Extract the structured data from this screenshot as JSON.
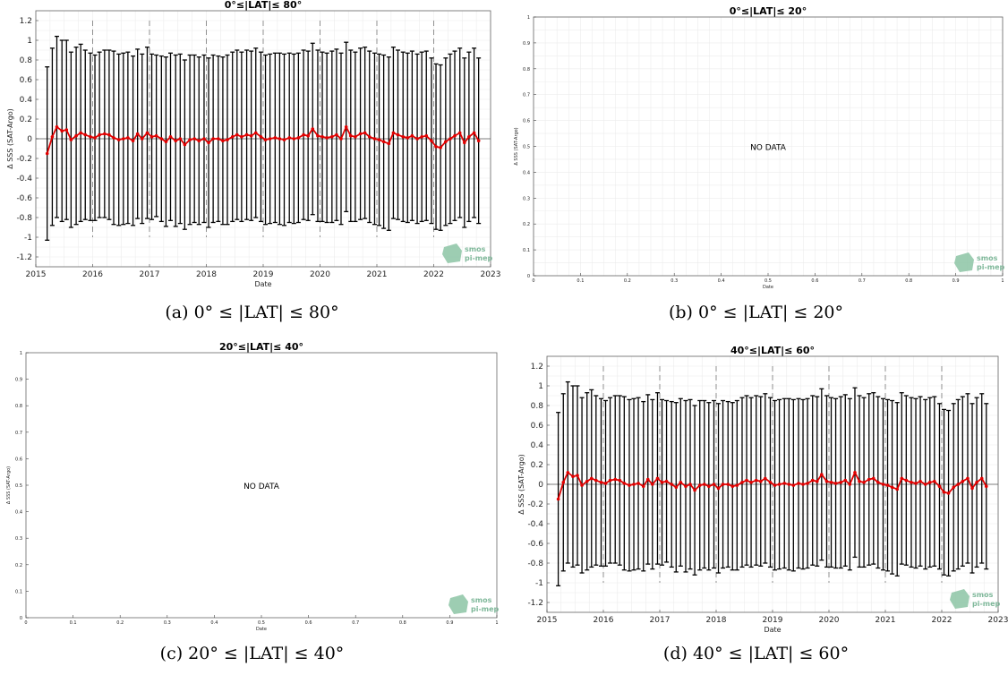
{
  "panels": [
    {
      "id": "a",
      "caption": "(a) 0° ≤ |LAT| ≤ 80°",
      "chart_data": {
        "type": "line",
        "title": "0°≤|LAT|≤ 80°",
        "xlabel": "Date",
        "ylabel": "Δ SSS (SAT-Argo)",
        "xlim": [
          2015,
          2023
        ],
        "ylim": [
          -1.3,
          1.3
        ],
        "xticks": [
          "2015",
          "2016",
          "2017",
          "2018",
          "2019",
          "2020",
          "2021",
          "2022",
          "2023"
        ],
        "yticks": [
          "1.2",
          "1",
          "0.8",
          "0.6",
          "0.4",
          "0.2",
          "0",
          "-0.2",
          "-0.4",
          "-0.6",
          "-0.8",
          "-1",
          "-1.2"
        ],
        "grid": true,
        "series": [
          {
            "color": "#e00000",
            "x": [
              2015.2,
              2015.29,
              2015.37,
              2015.46,
              2015.54,
              2015.62,
              2015.71,
              2015.79,
              2015.87,
              2015.96,
              2016.04,
              2016.12,
              2016.21,
              2016.29,
              2016.37,
              2016.46,
              2016.54,
              2016.62,
              2016.71,
              2016.79,
              2016.87,
              2016.96,
              2017.04,
              2017.12,
              2017.21,
              2017.29,
              2017.37,
              2017.46,
              2017.54,
              2017.62,
              2017.71,
              2017.79,
              2017.87,
              2017.96,
              2018.04,
              2018.12,
              2018.21,
              2018.29,
              2018.37,
              2018.46,
              2018.54,
              2018.62,
              2018.71,
              2018.79,
              2018.87,
              2018.96,
              2019.04,
              2019.12,
              2019.21,
              2019.29,
              2019.37,
              2019.46,
              2019.54,
              2019.62,
              2019.71,
              2019.79,
              2019.87,
              2019.96,
              2020.04,
              2020.12,
              2020.21,
              2020.29,
              2020.37,
              2020.46,
              2020.54,
              2020.62,
              2020.71,
              2020.79,
              2020.87,
              2020.96,
              2021.04,
              2021.12,
              2021.21,
              2021.29,
              2021.37,
              2021.46,
              2021.54,
              2021.62,
              2021.71,
              2021.79,
              2021.87,
              2021.96,
              2022.04,
              2022.12,
              2022.21,
              2022.29,
              2022.37,
              2022.46,
              2022.54,
              2022.62,
              2022.71,
              2022.79
            ],
            "y": [
              -0.15,
              0.02,
              0.12,
              0.08,
              0.09,
              -0.01,
              0.03,
              0.06,
              0.04,
              0.02,
              0.01,
              0.04,
              0.05,
              0.04,
              0.01,
              -0.01,
              0.0,
              0.01,
              -0.02,
              0.05,
              0.0,
              0.06,
              0.02,
              0.03,
              0.0,
              -0.03,
              0.02,
              -0.02,
              0.0,
              -0.06,
              -0.01,
              0.0,
              -0.02,
              0.0,
              -0.04,
              0.0,
              0.0,
              -0.02,
              -0.01,
              0.02,
              0.04,
              0.02,
              0.04,
              0.03,
              0.06,
              0.02,
              -0.01,
              0.0,
              0.01,
              0.0,
              -0.01,
              0.01,
              0.0,
              0.01,
              0.04,
              0.03,
              0.1,
              0.03,
              0.02,
              0.01,
              0.02,
              0.04,
              0.0,
              0.12,
              0.03,
              0.02,
              0.05,
              0.06,
              0.02,
              0.0,
              -0.01,
              -0.03,
              -0.05,
              0.06,
              0.04,
              0.02,
              0.01,
              0.03,
              0.0,
              0.02,
              0.03,
              -0.02,
              -0.08,
              -0.09,
              -0.03,
              0.0,
              0.03,
              0.06,
              -0.04,
              0.02,
              0.06,
              -0.02
            ],
            "yerr": [
              0.88,
              0.9,
              0.92,
              0.92,
              0.91,
              0.89,
              0.9,
              0.9,
              0.86,
              0.85,
              0.84,
              0.84,
              0.85,
              0.86,
              0.88,
              0.87,
              0.87,
              0.87,
              0.86,
              0.86,
              0.86,
              0.87,
              0.84,
              0.82,
              0.84,
              0.86,
              0.85,
              0.87,
              0.86,
              0.86,
              0.86,
              0.85,
              0.85,
              0.85,
              0.86,
              0.85,
              0.84,
              0.85,
              0.86,
              0.86,
              0.86,
              0.86,
              0.86,
              0.86,
              0.86,
              0.86,
              0.86,
              0.86,
              0.86,
              0.87,
              0.87,
              0.86,
              0.86,
              0.86,
              0.86,
              0.86,
              0.87,
              0.87,
              0.86,
              0.86,
              0.87,
              0.87,
              0.87,
              0.86,
              0.87,
              0.86,
              0.87,
              0.87,
              0.87,
              0.87,
              0.87,
              0.88,
              0.88,
              0.87,
              0.86,
              0.86,
              0.86,
              0.86,
              0.86,
              0.86,
              0.86,
              0.84,
              0.84,
              0.84,
              0.85,
              0.86,
              0.86,
              0.86,
              0.86,
              0.86,
              0.86,
              0.84
            ],
            "errorbar_color": "#000000"
          }
        ],
        "year_lines": [
          2016,
          2017,
          2018,
          2019,
          2020,
          2021,
          2022
        ]
      },
      "logo": {
        "line1": "smos",
        "line2": "pi-mep"
      }
    },
    {
      "id": "b",
      "caption": "(b) 0° ≤ |LAT| ≤ 20°",
      "chart_data": {
        "type": "line",
        "title": "0°≤|LAT|≤ 20°",
        "xlabel": "Date",
        "ylabel": "Δ SSS (SAT-Argo)",
        "xlim": [
          0,
          1
        ],
        "ylim": [
          0,
          1
        ],
        "xticks": [
          "0",
          "0.1",
          "0.2",
          "0.3",
          "0.4",
          "0.5",
          "0.6",
          "0.7",
          "0.8",
          "0.9",
          "1"
        ],
        "yticks": [
          "1",
          "0.9",
          "0.8",
          "0.7",
          "0.6",
          "0.5",
          "0.4",
          "0.3",
          "0.2",
          "0.1",
          "0"
        ],
        "grid": true,
        "series": [],
        "annotation": "NO DATA"
      },
      "logo": {
        "line1": "smos",
        "line2": "pi-mep"
      }
    },
    {
      "id": "c",
      "caption": "(c) 20° ≤ |LAT| ≤ 40°",
      "chart_data": {
        "type": "line",
        "title": "20°≤|LAT|≤ 40°",
        "xlabel": "Date",
        "ylabel": "Δ SSS (SAT-Argo)",
        "xlim": [
          0,
          1
        ],
        "ylim": [
          0,
          1
        ],
        "xticks": [
          "0",
          "0.1",
          "0.2",
          "0.3",
          "0.4",
          "0.5",
          "0.6",
          "0.7",
          "0.8",
          "0.9",
          "1"
        ],
        "yticks": [
          "1",
          "0.9",
          "0.8",
          "0.7",
          "0.6",
          "0.5",
          "0.4",
          "0.3",
          "0.2",
          "0.1",
          "0"
        ],
        "grid": false,
        "series": [],
        "annotation": "NO DATA"
      },
      "logo": {
        "line1": "smos",
        "line2": "pi-mep"
      }
    },
    {
      "id": "d",
      "caption": "(d) 40° ≤ |LAT| ≤ 60°",
      "chart_data": {
        "type": "line",
        "title": "40°≤|LAT|≤ 60°",
        "xlabel": "Date",
        "ylabel": "Δ SSS (SAT-Argo)",
        "xlim": [
          2015,
          2023
        ],
        "ylim": [
          -1.3,
          1.3
        ],
        "xticks": [
          "2015",
          "2016",
          "2017",
          "2018",
          "2019",
          "2020",
          "2021",
          "2022",
          "2023"
        ],
        "yticks": [
          "1.2",
          "1",
          "0.8",
          "0.6",
          "0.4",
          "0.2",
          "0",
          "-0.2",
          "-0.4",
          "-0.6",
          "-0.8",
          "-1",
          "-1.2"
        ],
        "grid": true,
        "series": [
          {
            "color": "#e00000",
            "x": [
              2015.2,
              2015.29,
              2015.37,
              2015.46,
              2015.54,
              2015.62,
              2015.71,
              2015.79,
              2015.87,
              2015.96,
              2016.04,
              2016.12,
              2016.21,
              2016.29,
              2016.37,
              2016.46,
              2016.54,
              2016.62,
              2016.71,
              2016.79,
              2016.87,
              2016.96,
              2017.04,
              2017.12,
              2017.21,
              2017.29,
              2017.37,
              2017.46,
              2017.54,
              2017.62,
              2017.71,
              2017.79,
              2017.87,
              2017.96,
              2018.04,
              2018.12,
              2018.21,
              2018.29,
              2018.37,
              2018.46,
              2018.54,
              2018.62,
              2018.71,
              2018.79,
              2018.87,
              2018.96,
              2019.04,
              2019.12,
              2019.21,
              2019.29,
              2019.37,
              2019.46,
              2019.54,
              2019.62,
              2019.71,
              2019.79,
              2019.87,
              2019.96,
              2020.04,
              2020.12,
              2020.21,
              2020.29,
              2020.37,
              2020.46,
              2020.54,
              2020.62,
              2020.71,
              2020.79,
              2020.87,
              2020.96,
              2021.04,
              2021.12,
              2021.21,
              2021.29,
              2021.37,
              2021.46,
              2021.54,
              2021.62,
              2021.71,
              2021.79,
              2021.87,
              2021.96,
              2022.04,
              2022.12,
              2022.21,
              2022.29,
              2022.37,
              2022.46,
              2022.54,
              2022.62,
              2022.71,
              2022.79
            ],
            "y": [
              -0.15,
              0.02,
              0.12,
              0.08,
              0.09,
              -0.01,
              0.03,
              0.06,
              0.04,
              0.02,
              0.01,
              0.04,
              0.05,
              0.04,
              0.01,
              -0.01,
              0.0,
              0.01,
              -0.02,
              0.05,
              0.0,
              0.06,
              0.02,
              0.03,
              0.0,
              -0.03,
              0.02,
              -0.02,
              0.0,
              -0.06,
              -0.01,
              0.0,
              -0.02,
              0.0,
              -0.04,
              0.0,
              0.0,
              -0.02,
              -0.01,
              0.02,
              0.04,
              0.02,
              0.04,
              0.03,
              0.06,
              0.02,
              -0.01,
              0.0,
              0.01,
              0.0,
              -0.01,
              0.01,
              0.0,
              0.01,
              0.04,
              0.03,
              0.1,
              0.03,
              0.02,
              0.01,
              0.02,
              0.04,
              0.0,
              0.12,
              0.03,
              0.02,
              0.05,
              0.06,
              0.02,
              0.0,
              -0.01,
              -0.03,
              -0.05,
              0.06,
              0.04,
              0.02,
              0.01,
              0.03,
              0.0,
              0.02,
              0.03,
              -0.02,
              -0.08,
              -0.09,
              -0.03,
              0.0,
              0.03,
              0.06,
              -0.04,
              0.02,
              0.06,
              -0.02
            ],
            "yerr": [
              0.88,
              0.9,
              0.92,
              0.92,
              0.91,
              0.89,
              0.9,
              0.9,
              0.86,
              0.85,
              0.84,
              0.84,
              0.85,
              0.86,
              0.88,
              0.87,
              0.87,
              0.87,
              0.86,
              0.86,
              0.86,
              0.87,
              0.84,
              0.82,
              0.84,
              0.86,
              0.85,
              0.87,
              0.86,
              0.86,
              0.86,
              0.85,
              0.85,
              0.85,
              0.86,
              0.85,
              0.84,
              0.85,
              0.86,
              0.86,
              0.86,
              0.86,
              0.86,
              0.86,
              0.86,
              0.86,
              0.86,
              0.86,
              0.86,
              0.87,
              0.87,
              0.86,
              0.86,
              0.86,
              0.86,
              0.86,
              0.87,
              0.87,
              0.86,
              0.86,
              0.87,
              0.87,
              0.87,
              0.86,
              0.87,
              0.86,
              0.87,
              0.87,
              0.87,
              0.87,
              0.87,
              0.88,
              0.88,
              0.87,
              0.86,
              0.86,
              0.86,
              0.86,
              0.86,
              0.86,
              0.86,
              0.84,
              0.84,
              0.84,
              0.85,
              0.86,
              0.86,
              0.86,
              0.86,
              0.86,
              0.86,
              0.84
            ],
            "errorbar_color": "#000000"
          }
        ],
        "year_lines": [
          2016,
          2017,
          2018,
          2019,
          2020,
          2021,
          2022
        ]
      },
      "logo": {
        "line1": "smos",
        "line2": "pi-mep"
      }
    }
  ]
}
